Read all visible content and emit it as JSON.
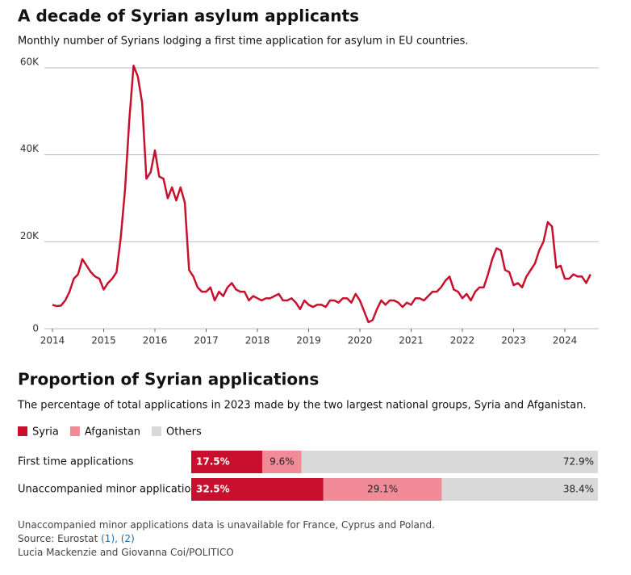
{
  "chart_data": [
    {
      "type": "line",
      "title": "A decade of Syrian asylum applicants",
      "subtitle": "Monthly number of Syrians lodging a first time application for asylum in EU countries.",
      "categories": [
        "2014",
        null,
        null,
        null,
        null,
        null,
        null,
        null,
        null,
        null,
        null,
        null,
        "2015",
        null,
        null,
        null,
        null,
        null,
        null,
        null,
        null,
        null,
        null,
        null,
        "2016",
        null,
        null,
        null,
        null,
        null,
        null,
        null,
        null,
        null,
        null,
        null,
        "2017",
        null,
        null,
        null,
        null,
        null,
        null,
        null,
        null,
        null,
        null,
        null,
        "2018",
        null,
        null,
        null,
        null,
        null,
        null,
        null,
        null,
        null,
        null,
        null,
        "2019",
        null,
        null,
        null,
        null,
        null,
        null,
        null,
        null,
        null,
        null,
        null,
        "2020",
        null,
        null,
        null,
        null,
        null,
        null,
        null,
        null,
        null,
        null,
        null,
        "2021",
        null,
        null,
        null,
        null,
        null,
        null,
        null,
        null,
        null,
        null,
        null,
        "2022",
        null,
        null,
        null,
        null,
        null,
        null,
        null,
        null,
        null,
        null,
        null,
        "2023",
        null,
        null,
        null,
        null,
        null,
        null,
        null,
        null,
        null,
        null,
        null,
        "2024",
        null,
        null,
        null,
        null,
        null,
        null
      ],
      "series": [
        {
          "name": "Syria",
          "color": "#c8102e",
          "values": [
            5500,
            5200,
            5300,
            6500,
            8500,
            11500,
            12500,
            16000,
            14500,
            13000,
            12000,
            11500,
            9000,
            10500,
            11500,
            13000,
            21000,
            32000,
            48000,
            60500,
            58000,
            52000,
            34500,
            36000,
            41000,
            35000,
            34500,
            30000,
            32500,
            29500,
            32500,
            29000,
            13500,
            12000,
            9500,
            8500,
            8500,
            9500,
            6500,
            8500,
            7500,
            9500,
            10500,
            9000,
            8500,
            8500,
            6500,
            7500,
            7000,
            6500,
            7000,
            7000,
            7500,
            8000,
            6500,
            6500,
            7000,
            6000,
            4500,
            6500,
            5500,
            5000,
            5500,
            5500,
            5000,
            6500,
            6500,
            6000,
            7000,
            7000,
            6000,
            8000,
            6500,
            4000,
            1500,
            2000,
            4500,
            6500,
            5500,
            6500,
            6500,
            6000,
            5000,
            6000,
            5500,
            7000,
            7000,
            6500,
            7500,
            8500,
            8500,
            9500,
            11000,
            12000,
            9000,
            8500,
            7000,
            8000,
            6500,
            8500,
            9500,
            9500,
            12500,
            16000,
            18500,
            18000,
            13500,
            13000,
            10000,
            10500,
            9500,
            12000,
            13500,
            15000,
            18000,
            20000,
            24500,
            23500,
            14000,
            14500,
            11500,
            11500,
            12500,
            12000,
            12000,
            10500,
            12500
          ]
        }
      ],
      "ylim": [
        0,
        60000
      ],
      "yticks": [
        0,
        {
          "value": 20000,
          "label": "20K"
        },
        {
          "value": 40000,
          "label": "40K"
        },
        {
          "value": 60000,
          "label": "60K"
        }
      ],
      "grid": true
    },
    {
      "type": "stacked_barh",
      "title": "Proportion of Syrian applications",
      "subtitle": "The percentage of total applications in 2023 made by the two largest national groups, Syria and Afganistan.",
      "categories": [
        "First time applications",
        "Unaccompanied minor applications"
      ],
      "series": [
        {
          "name": "Syria",
          "color": "#c8102e",
          "values": [
            17.5,
            32.5
          ],
          "value_labels": [
            "17.5%",
            "32.5%"
          ]
        },
        {
          "name": "Afganistan",
          "color": "#f28b98",
          "values": [
            9.6,
            29.1
          ],
          "value_labels": [
            "9.6%",
            "29.1%"
          ]
        },
        {
          "name": "Others",
          "color": "#d9d9d9",
          "values": [
            72.9,
            38.4
          ],
          "value_labels": [
            "72.9%",
            "38.4%"
          ]
        }
      ],
      "xlim": [
        0,
        100
      ],
      "legend": "top-left"
    }
  ],
  "footer": {
    "note": "Unaccompanied minor applications data is unavailable for France, Cyprus and Poland.",
    "source": "Source: Eurostat",
    "source_links": "(1), (2)",
    "credit": "Lucia Mackenzie and Giovanna Coi/POLITICO"
  }
}
